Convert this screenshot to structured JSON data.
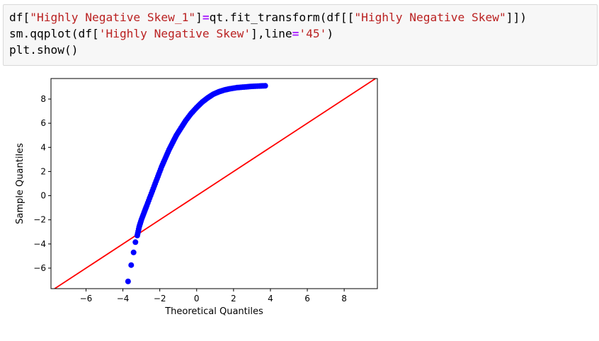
{
  "code": {
    "line1": [
      {
        "t": "df[",
        "c": ""
      },
      {
        "t": "\"Highly Negative Skew_1\"",
        "c": "s"
      },
      {
        "t": "]",
        "c": ""
      },
      {
        "t": "=",
        "c": "o"
      },
      {
        "t": "qt.fit_transform(df[[",
        "c": ""
      },
      {
        "t": "\"Highly Negative Skew\"",
        "c": "s"
      },
      {
        "t": "]])",
        "c": ""
      }
    ],
    "line2": [
      {
        "t": "sm.qqplot(df[",
        "c": ""
      },
      {
        "t": "'Highly Negative Skew'",
        "c": "s"
      },
      {
        "t": "],line",
        "c": ""
      },
      {
        "t": "=",
        "c": "o"
      },
      {
        "t": "'45'",
        "c": "s"
      },
      {
        "t": ")",
        "c": ""
      }
    ],
    "line3": [
      {
        "t": "plt.show()",
        "c": ""
      }
    ]
  },
  "chart_data": {
    "type": "scatter",
    "xlabel": "Theoretical Quantiles",
    "ylabel": "Sample Quantiles",
    "xlim": [
      -7.9,
      9.8
    ],
    "ylim": [
      -7.7,
      9.7
    ],
    "xticks": [
      -6,
      -4,
      -2,
      0,
      2,
      4,
      6,
      8
    ],
    "yticks": [
      -6,
      -4,
      -2,
      0,
      2,
      4,
      6,
      8
    ],
    "point_color": "#0000ff",
    "line_color": "#ff0000",
    "reference_line": "45-degree (y = x)",
    "grid": false,
    "points": [
      [
        -3.72,
        -7.1
      ],
      [
        -3.55,
        -5.75
      ],
      [
        -3.42,
        -4.7
      ],
      [
        -3.32,
        -3.85
      ],
      [
        -3.22,
        -3.3
      ],
      [
        -3.12,
        -2.6
      ],
      [
        -3.0,
        -2.0
      ],
      [
        -2.85,
        -1.4
      ],
      [
        -2.7,
        -0.8
      ],
      [
        -2.5,
        0.0
      ],
      [
        -2.3,
        0.8
      ],
      [
        -2.1,
        1.6
      ],
      [
        -1.9,
        2.4
      ],
      [
        -1.7,
        3.1
      ],
      [
        -1.5,
        3.8
      ],
      [
        -1.3,
        4.4
      ],
      [
        -1.1,
        5.0
      ],
      [
        -0.85,
        5.6
      ],
      [
        -0.6,
        6.2
      ],
      [
        -0.3,
        6.8
      ],
      [
        0.0,
        7.3
      ],
      [
        0.3,
        7.75
      ],
      [
        0.6,
        8.1
      ],
      [
        0.9,
        8.4
      ],
      [
        1.2,
        8.6
      ],
      [
        1.5,
        8.75
      ],
      [
        1.8,
        8.85
      ],
      [
        2.2,
        8.95
      ],
      [
        2.6,
        9.0
      ],
      [
        3.0,
        9.05
      ],
      [
        3.4,
        9.08
      ],
      [
        3.72,
        9.1
      ]
    ]
  }
}
